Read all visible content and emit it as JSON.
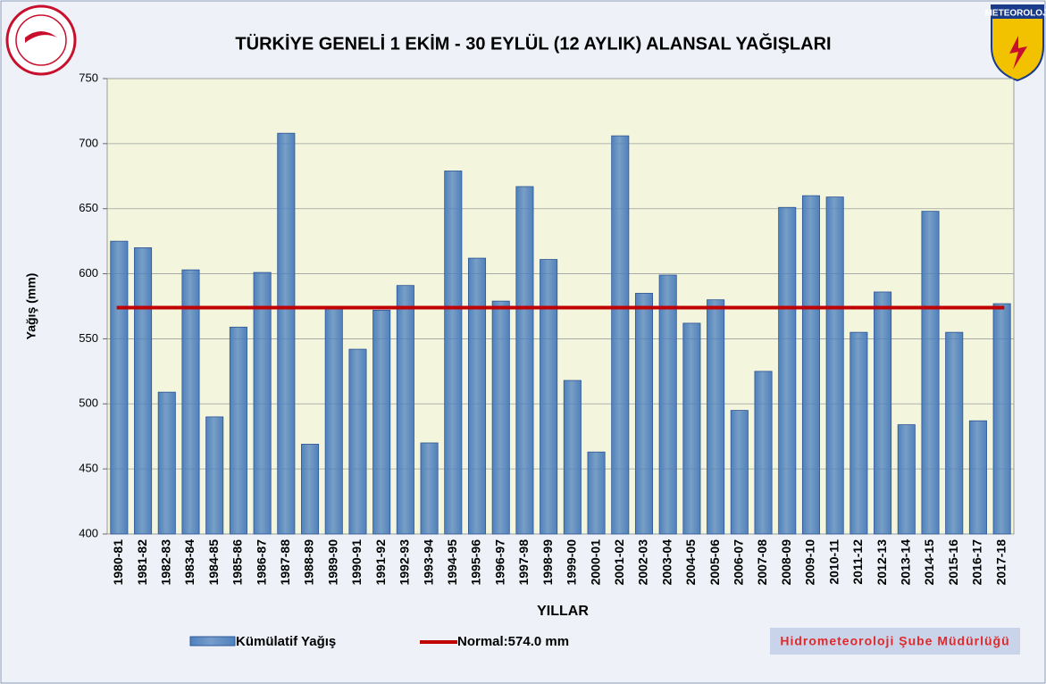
{
  "chart_data": {
    "type": "bar",
    "title": "TÜRKİYE GENELİ  1 EKİM - 30 EYLÜL (12 AYLIK) ALANSAL YAĞIŞLARI",
    "x_label": "YILLAR",
    "y_label": "Yağış (mm)",
    "categories": [
      "1980-81",
      "1981-82",
      "1982-83",
      "1983-84",
      "1984-85",
      "1985-86",
      "1986-87",
      "1987-88",
      "1988-89",
      "1989-90",
      "1990-91",
      "1991-92",
      "1992-93",
      "1993-94",
      "1994-95",
      "1995-96",
      "1996-97",
      "1997-98",
      "1998-99",
      "1999-00",
      "2000-01",
      "2001-02",
      "2002-03",
      "2003-04",
      "2004-05",
      "2005-06",
      "2006-07",
      "2007-08",
      "2008-09",
      "2009-10",
      "2010-11",
      "2011-12",
      "2012-13",
      "2013-14",
      "2014-15",
      "2015-16",
      "2016-17",
      "2017-18"
    ],
    "series": [
      {
        "name": "Kümülatif Yağış",
        "color": "#4f81bd",
        "values": [
          625,
          620,
          509,
          603,
          490,
          559,
          601,
          708,
          469,
          573,
          542,
          572,
          591,
          470,
          679,
          612,
          579,
          667,
          611,
          518,
          463,
          706,
          585,
          599,
          562,
          580,
          495,
          525,
          651,
          660,
          659,
          555,
          586,
          484,
          648,
          555,
          487,
          577
        ]
      }
    ],
    "reference_line": {
      "name": "Normal:574.0 mm",
      "value": 574,
      "color": "#c00000"
    },
    "ylim": [
      400,
      750
    ],
    "yticks": [
      400,
      450,
      500,
      550,
      600,
      650,
      700,
      750
    ],
    "grid": true,
    "footer": "Hidrometeoroloji Şube Müdürlüğü",
    "logo_text": "METEOROLOJI"
  }
}
